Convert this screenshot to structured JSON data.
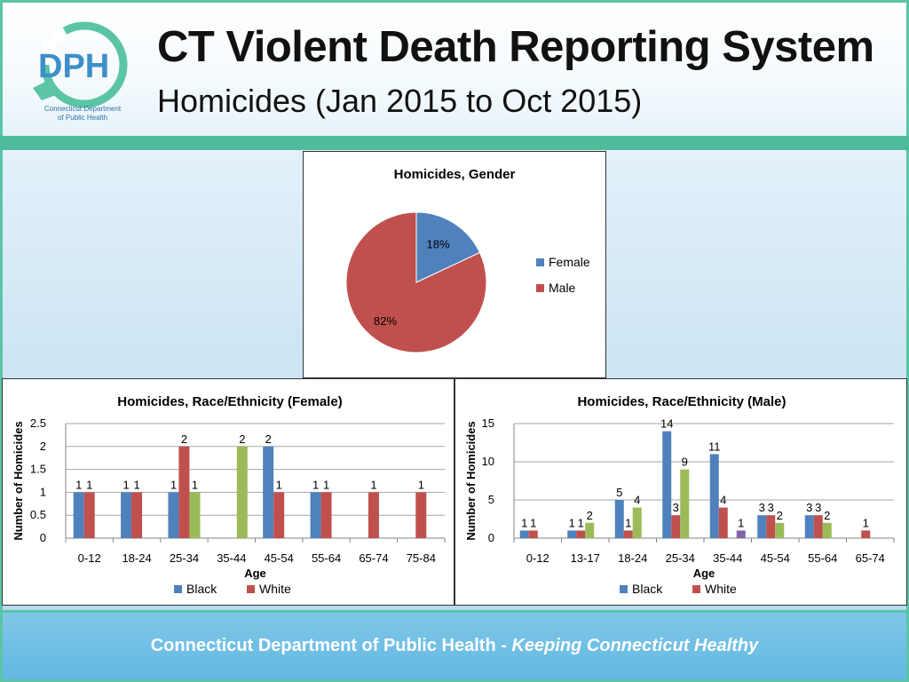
{
  "header": {
    "title": "CT Violent Death Reporting System",
    "subtitle": "Homicides (Jan 2015 to Oct 2015)",
    "logo": {
      "text": "DPH",
      "caption_line1": "Connecticut Department",
      "caption_line2": "of Public Health",
      "ring_text": "Keeping Connecticut Healthy"
    }
  },
  "footer": {
    "org": "Connecticut Department of Public Health",
    "separator": " - ",
    "slogan": "Keeping Connecticut Healthy"
  },
  "colors": {
    "black": "#4f81bd",
    "white": "#c0504d",
    "green": "#9bbb59",
    "purple": "#8064a2",
    "female": "#4f81bd",
    "male": "#c0504d"
  },
  "chart_data": [
    {
      "id": "gender",
      "type": "pie",
      "title": "Homicides, Gender",
      "slices": [
        {
          "name": "Female",
          "value": 18,
          "label": "18%"
        },
        {
          "name": "Male",
          "value": 82,
          "label": "82%"
        }
      ],
      "legend": "right"
    },
    {
      "id": "female",
      "type": "bar",
      "title": "Homicides, Race/Ethnicity (Female)",
      "xlabel": "Age",
      "ylabel": "Number of Homicides",
      "ylim": [
        0,
        2.5
      ],
      "yticks": [
        0,
        0.5,
        1,
        1.5,
        2,
        2.5
      ],
      "ytick_labels": [
        "0",
        "0.5",
        "1",
        "1.5",
        "2",
        "2.5"
      ],
      "categories": [
        "0-12",
        "18-24",
        "25-34",
        "35-44",
        "45-54",
        "55-64",
        "65-74",
        "75-84"
      ],
      "series": [
        {
          "name": "Black",
          "color": "#4f81bd",
          "values": [
            1,
            1,
            1,
            null,
            2,
            1,
            null,
            null
          ]
        },
        {
          "name": "White",
          "color": "#c0504d",
          "values": [
            1,
            1,
            2,
            null,
            1,
            1,
            1,
            1
          ]
        },
        {
          "color": "#9bbb59",
          "values": [
            null,
            null,
            1,
            2,
            null,
            null,
            null,
            null
          ]
        }
      ],
      "legend": "bottom",
      "legend_entries": [
        "Black",
        "White"
      ]
    },
    {
      "id": "male",
      "type": "bar",
      "title": "Homicides, Race/Ethnicity (Male)",
      "xlabel": "Age",
      "ylabel": "Number of Homicides",
      "ylim": [
        0,
        15
      ],
      "yticks": [
        0,
        5,
        10,
        15
      ],
      "ytick_labels": [
        "0",
        "5",
        "10",
        "15"
      ],
      "categories": [
        "0-12",
        "13-17",
        "18-24",
        "25-34",
        "35-44",
        "45-54",
        "55-64",
        "65-74"
      ],
      "series": [
        {
          "name": "Black",
          "color": "#4f81bd",
          "values": [
            1,
            1,
            5,
            14,
            11,
            3,
            3,
            null
          ]
        },
        {
          "name": "White",
          "color": "#c0504d",
          "values": [
            1,
            1,
            1,
            3,
            4,
            3,
            3,
            1
          ]
        },
        {
          "color": "#9bbb59",
          "values": [
            null,
            2,
            4,
            9,
            null,
            2,
            2,
            null
          ]
        },
        {
          "color": "#8064a2",
          "values": [
            null,
            null,
            null,
            null,
            1,
            null,
            null,
            null
          ]
        }
      ],
      "legend": "bottom",
      "legend_entries": [
        "Black",
        "White"
      ]
    }
  ]
}
